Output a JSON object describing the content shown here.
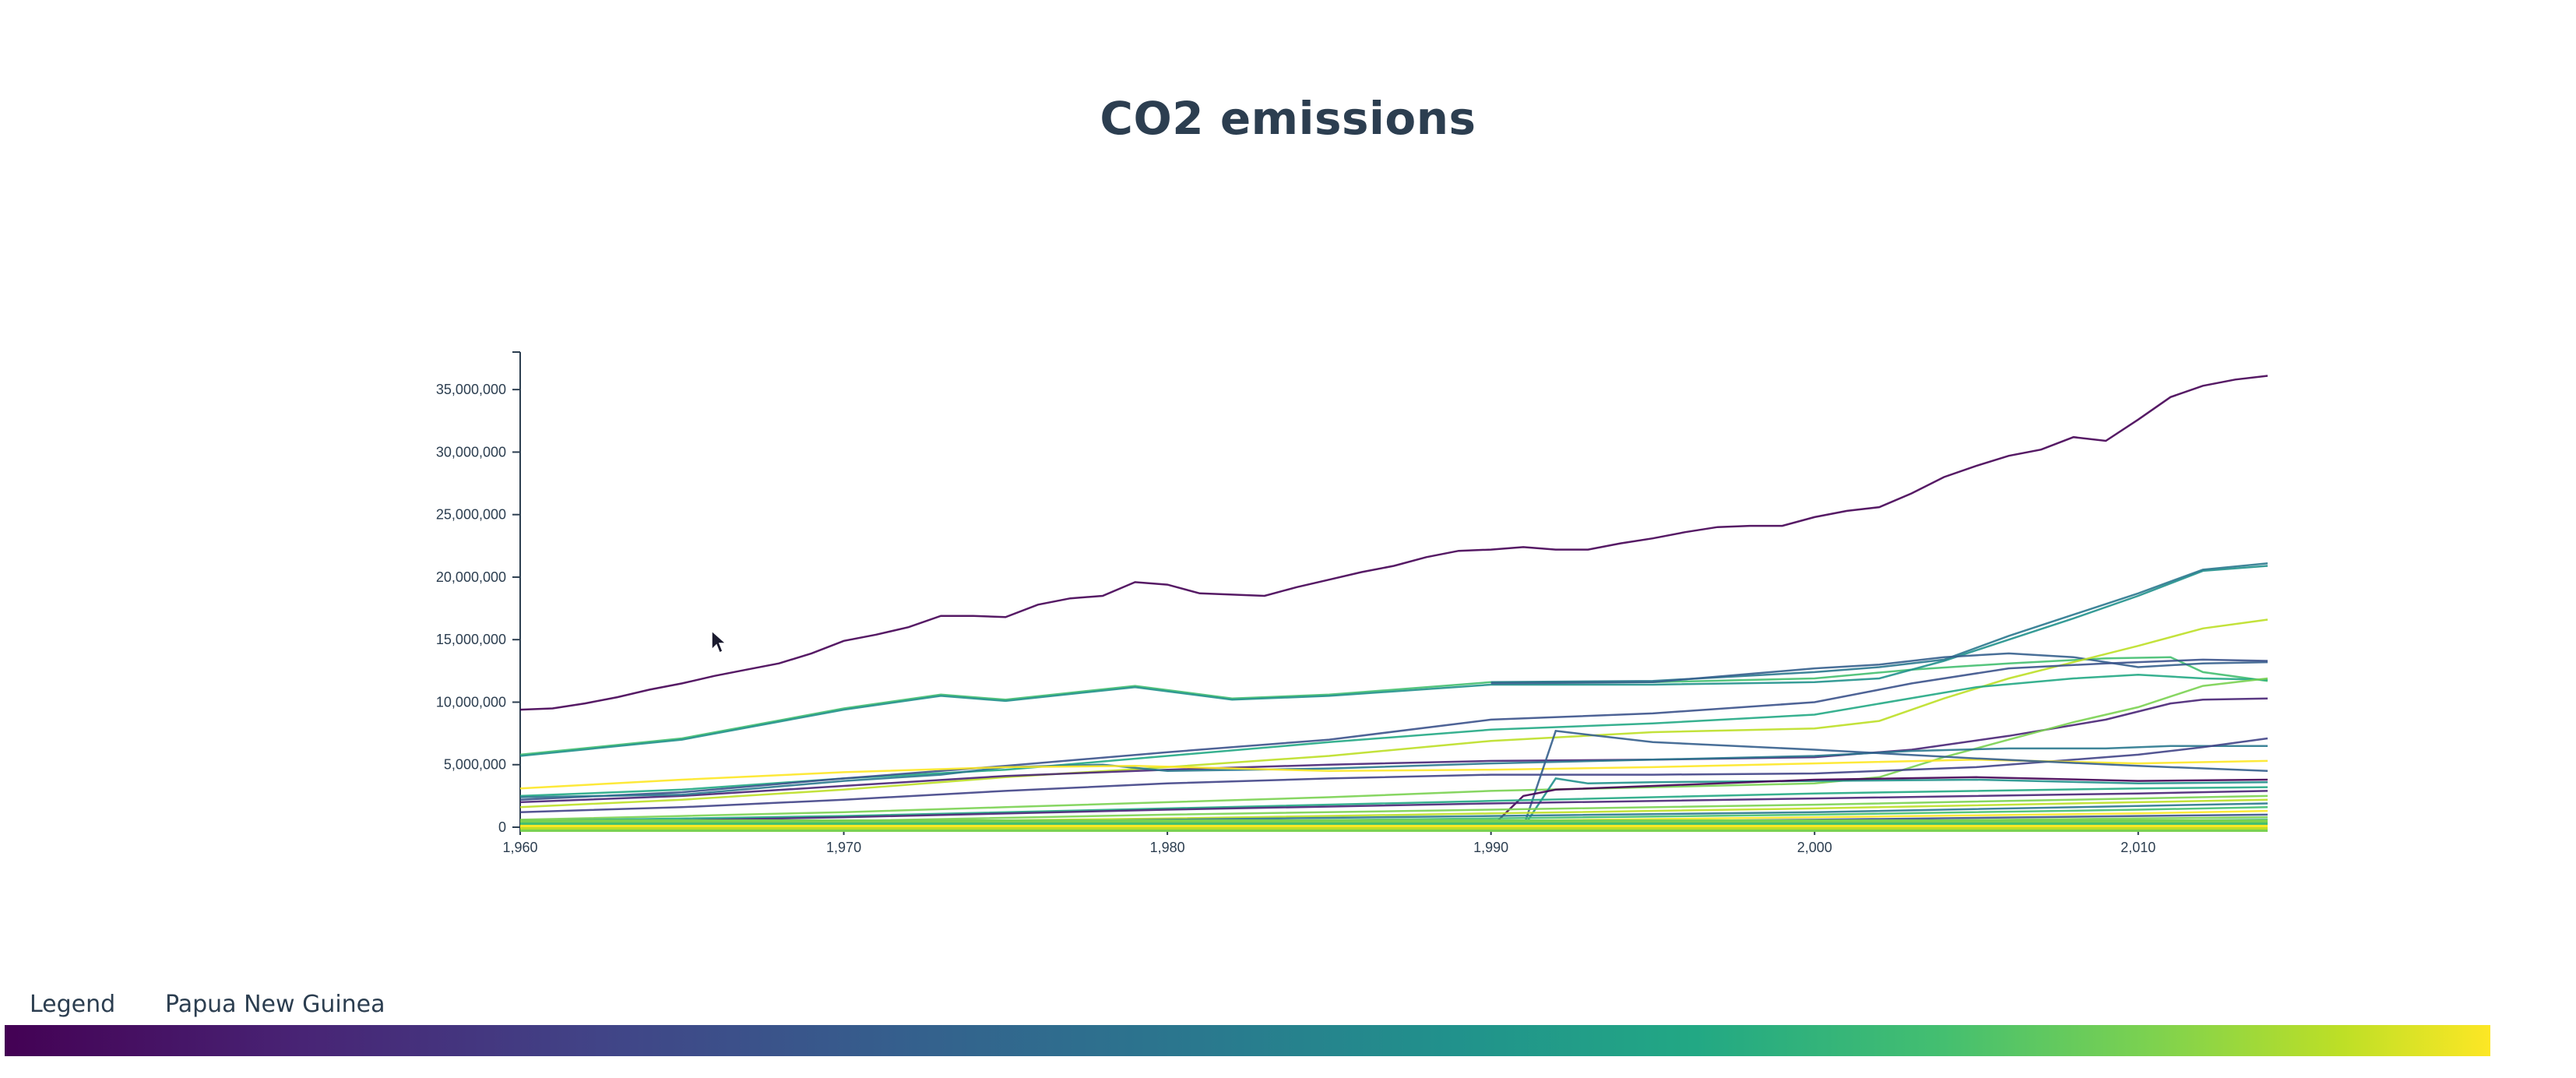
{
  "title": "CO2 emissions",
  "legend": {
    "label": "Legend",
    "hovered": "Papua New Guinea",
    "colormap": [
      "#440154",
      "#482475",
      "#414487",
      "#355f8d",
      "#2a788e",
      "#21918c",
      "#22a884",
      "#44bf70",
      "#7ad151",
      "#bddf26",
      "#fde725"
    ]
  },
  "chart_data": {
    "type": "line",
    "title": "CO2 emissions",
    "xlabel": "",
    "ylabel": "",
    "xlim": [
      1960,
      2014
    ],
    "ylim": [
      0,
      38000000
    ],
    "x_ticks": [
      "1,960",
      "1,970",
      "1,980",
      "1,990",
      "2,000",
      "2,010"
    ],
    "y_ticks": [
      "0",
      "5,000,000",
      "10,000,000",
      "15,000,000",
      "20,000,000",
      "25,000,000",
      "30,000,000",
      "35,000,000"
    ],
    "x_tick_values": [
      1960,
      1970,
      1980,
      1990,
      2000,
      2010
    ],
    "y_tick_values": [
      0,
      5000000,
      10000000,
      15000000,
      20000000,
      25000000,
      30000000,
      35000000
    ],
    "grid": false,
    "legend": "bottom color gradient",
    "series": [
      {
        "color": "#440154",
        "x": [
          1960,
          1961,
          1962,
          1963,
          1964,
          1965,
          1966,
          1967,
          1968,
          1969,
          1970,
          1971,
          1972,
          1973,
          1974,
          1975,
          1976,
          1977,
          1978,
          1979,
          1980,
          1981,
          1982,
          1983,
          1984,
          1985,
          1986,
          1987,
          1988,
          1989,
          1990,
          1991,
          1992,
          1993,
          1994,
          1995,
          1996,
          1997,
          1998,
          1999,
          2000,
          2001,
          2002,
          2003,
          2004,
          2005,
          2006,
          2007,
          2008,
          2009,
          2010,
          2011,
          2012,
          2013,
          2014
        ],
        "values": [
          9400000,
          9500000,
          9900000,
          10400000,
          11000000,
          11500000,
          12100000,
          12600000,
          13100000,
          13900000,
          14900000,
          15400000,
          16000000,
          16900000,
          16900000,
          16800000,
          17800000,
          18300000,
          18500000,
          19600000,
          19400000,
          18700000,
          18600000,
          18500000,
          19200000,
          19800000,
          20400000,
          20900000,
          21600000,
          22100000,
          22200000,
          22400000,
          22200000,
          22200000,
          22700000,
          23100000,
          23600000,
          24000000,
          24100000,
          24100000,
          24800000,
          25300000,
          25600000,
          26700000,
          28000000,
          28900000,
          29700000,
          30200000,
          31200000,
          30900000,
          32600000,
          34400000,
          35300000,
          35800000,
          36100000
        ]
      },
      {
        "color": "#44bf70",
        "x": [
          1960,
          1965,
          1970,
          1973,
          1975,
          1979,
          1982,
          1985,
          1990,
          1995,
          2000,
          2003,
          2006,
          2009,
          2011,
          2012,
          2014
        ],
        "values": [
          5800000,
          7100000,
          9500000,
          10600000,
          10200000,
          11300000,
          10300000,
          10600000,
          11600000,
          11600000,
          11900000,
          12600000,
          13100000,
          13500000,
          13600000,
          12400000,
          11700000
        ]
      },
      {
        "color": "#21918c",
        "x": [
          1960,
          1965,
          1970,
          1973,
          1975,
          1979,
          1982,
          1985,
          1990,
          1995,
          2000,
          2002,
          2004,
          2006,
          2008,
          2010,
          2012,
          2014
        ],
        "values": [
          5700000,
          7000000,
          9400000,
          10500000,
          10100000,
          11200000,
          10200000,
          10500000,
          11400000,
          11400000,
          11600000,
          11900000,
          13300000,
          15000000,
          16700000,
          18500000,
          20500000,
          20900000
        ]
      },
      {
        "color": "#2a788e",
        "x": [
          1990,
          1995,
          2000,
          2002,
          2004,
          2006,
          2008,
          2010,
          2012,
          2014
        ],
        "values": [
          11600000,
          11700000,
          12400000,
          12800000,
          13400000,
          15300000,
          17000000,
          18700000,
          20600000,
          21100000
        ]
      },
      {
        "color": "#355f8d",
        "x": [
          1990,
          1995,
          2000,
          2002,
          2004,
          2006,
          2008,
          2010,
          2012,
          2014
        ],
        "values": [
          11500000,
          11600000,
          12700000,
          13000000,
          13600000,
          13900000,
          13600000,
          12800000,
          13100000,
          13200000
        ]
      },
      {
        "color": "#bddf26",
        "x": [
          1960,
          1965,
          1970,
          1975,
          1980,
          1985,
          1990,
          1995,
          2000,
          2002,
          2004,
          2006,
          2008,
          2010,
          2012,
          2014
        ],
        "values": [
          1600000,
          2200000,
          3000000,
          4000000,
          4800000,
          5700000,
          6900000,
          7600000,
          7900000,
          8500000,
          10300000,
          11900000,
          13200000,
          14500000,
          15900000,
          16600000
        ]
      },
      {
        "color": "#22a884",
        "x": [
          1960,
          1965,
          1970,
          1975,
          1980,
          1985,
          1990,
          1995,
          2000,
          2005,
          2008,
          2010,
          2012,
          2014
        ],
        "values": [
          2500000,
          3000000,
          3900000,
          4600000,
          5700000,
          6800000,
          7800000,
          8300000,
          9000000,
          11200000,
          11900000,
          12200000,
          11900000,
          11800000
        ]
      },
      {
        "color": "#3b528b",
        "x": [
          1960,
          1965,
          1970,
          1975,
          1980,
          1985,
          1990,
          1995,
          2000,
          2003,
          2006,
          2009,
          2011,
          2012,
          2014
        ],
        "values": [
          2200000,
          2800000,
          3900000,
          4900000,
          6000000,
          7000000,
          8600000,
          9100000,
          10000000,
          11500000,
          12700000,
          13100000,
          13300000,
          13400000,
          13300000
        ]
      },
      {
        "color": "#482475",
        "x": [
          1960,
          1965,
          1970,
          1975,
          1980,
          1985,
          1990,
          1995,
          2000,
          2003,
          2006,
          2009,
          2011,
          2012,
          2014
        ],
        "values": [
          2000000,
          2500000,
          3300000,
          4100000,
          4600000,
          5000000,
          5300000,
          5400000,
          5600000,
          6200000,
          7300000,
          8600000,
          9900000,
          10200000,
          10300000
        ]
      },
      {
        "color": "#7ad151",
        "x": [
          1960,
          1965,
          1970,
          1975,
          1980,
          1985,
          1990,
          1995,
          2000,
          2002,
          2004,
          2006,
          2008,
          2010,
          2012,
          2014
        ],
        "values": [
          600000,
          900000,
          1200000,
          1600000,
          2000000,
          2400000,
          2900000,
          3200000,
          3500000,
          4000000,
          5600000,
          7000000,
          8400000,
          9600000,
          11300000,
          11900000
        ]
      },
      {
        "color": "#2a788e",
        "x": [
          1960,
          1965,
          1970,
          1973,
          1975,
          1978,
          1980,
          1985,
          1990,
          1995,
          2000,
          2003,
          2006,
          2009,
          2011,
          2014
        ],
        "values": [
          2400000,
          2600000,
          3700000,
          4200000,
          4800000,
          5000000,
          4500000,
          4700000,
          5100000,
          5400000,
          5700000,
          6100000,
          6300000,
          6300000,
          6500000,
          6500000
        ]
      },
      {
        "color": "#414487",
        "x": [
          1960,
          1965,
          1970,
          1975,
          1980,
          1985,
          1990,
          1995,
          2000,
          2005,
          2010,
          2012,
          2014
        ],
        "values": [
          1200000,
          1600000,
          2200000,
          2900000,
          3500000,
          3900000,
          4200000,
          4200000,
          4300000,
          4800000,
          5800000,
          6400000,
          7100000
        ]
      },
      {
        "color": "#fde725",
        "x": [
          1960,
          1965,
          1970,
          1975,
          1979,
          1985,
          1990,
          1995,
          2000,
          2005,
          2010,
          2014
        ],
        "values": [
          3100000,
          3800000,
          4400000,
          4800000,
          4900000,
          4500000,
          4600000,
          4800000,
          5100000,
          5400000,
          5100000,
          5300000
        ]
      },
      {
        "color": "#355f8d",
        "x": [
          1990,
          1991,
          1992,
          1993,
          1995,
          2000,
          2005,
          2010,
          2014
        ],
        "values": [
          0,
          0,
          7700000,
          7400000,
          6800000,
          6200000,
          5500000,
          4900000,
          4500000
        ]
      },
      {
        "color": "#21918c",
        "x": [
          1991,
          1992,
          1993,
          1995,
          2000,
          2005,
          2010,
          2014
        ],
        "values": [
          0,
          3900000,
          3500000,
          3600000,
          3700000,
          3800000,
          3500000,
          3600000
        ]
      },
      {
        "color": "#440154",
        "x": [
          1990,
          1991,
          1992,
          1995,
          2000,
          2005,
          2010,
          2014
        ],
        "values": [
          0,
          2500000,
          3000000,
          3300000,
          3800000,
          4000000,
          3700000,
          3800000
        ]
      },
      {
        "color": "#22a884",
        "x": [
          1960,
          1970,
          1980,
          1990,
          2000,
          2010,
          2014
        ],
        "values": [
          500000,
          900000,
          1500000,
          2100000,
          2700000,
          3100000,
          3200000
        ]
      },
      {
        "color": "#482475",
        "x": [
          1960,
          1970,
          1980,
          1990,
          2000,
          2010,
          2014
        ],
        "values": [
          300000,
          800000,
          1400000,
          1900000,
          2300000,
          2700000,
          2900000
        ]
      },
      {
        "color": "#7ad151",
        "x": [
          1960,
          1970,
          1980,
          1990,
          2000,
          2010,
          2014
        ],
        "values": [
          200000,
          500000,
          1000000,
          1400000,
          1800000,
          2300000,
          2500000
        ]
      },
      {
        "color": "#bddf26",
        "x": [
          1960,
          1970,
          1980,
          1990,
          2000,
          2010,
          2014
        ],
        "values": [
          150000,
          400000,
          700000,
          1100000,
          1500000,
          2000000,
          2200000
        ]
      },
      {
        "color": "#2a788e",
        "x": [
          1960,
          1970,
          1980,
          1990,
          2000,
          2010,
          2014
        ],
        "values": [
          100000,
          300000,
          600000,
          900000,
          1200000,
          1700000,
          1900000
        ]
      },
      {
        "color": "#44bf70",
        "x": [
          1960,
          1970,
          1980,
          1990,
          2000,
          2010,
          2014
        ],
        "values": [
          80000,
          200000,
          450000,
          700000,
          1000000,
          1400000,
          1600000
        ]
      },
      {
        "color": "#fde725",
        "x": [
          1960,
          1970,
          1980,
          1990,
          2000,
          2010,
          2014
        ],
        "values": [
          60000,
          150000,
          350000,
          500000,
          800000,
          1100000,
          1300000
        ]
      },
      {
        "color": "#3b528b",
        "x": [
          1960,
          1970,
          1980,
          1990,
          2000,
          2010,
          2014
        ],
        "values": [
          40000,
          100000,
          250000,
          400000,
          600000,
          900000,
          1000000
        ]
      },
      {
        "color": "#7ad151",
        "x": [
          1960,
          1970,
          1980,
          1990,
          2000,
          2010,
          2014
        ],
        "values": [
          30000,
          80000,
          180000,
          300000,
          450000,
          700000,
          800000
        ]
      },
      {
        "color": "#22a884",
        "x": [
          1960,
          1970,
          1980,
          1990,
          2000,
          2010,
          2014
        ],
        "values": [
          20000,
          50000,
          120000,
          200000,
          350000,
          500000,
          600000
        ]
      },
      {
        "color": "#bddf26",
        "x": [
          1960,
          1970,
          1980,
          1990,
          2000,
          2010,
          2014
        ],
        "values": [
          10000,
          30000,
          80000,
          150000,
          250000,
          380000,
          450000
        ]
      },
      {
        "color": "#fde725",
        "x": [
          1960,
          1970,
          1980,
          1990,
          2000,
          2010,
          2014
        ],
        "values": [
          5000,
          15000,
          50000,
          100000,
          160000,
          250000,
          300000
        ]
      },
      {
        "color": "#44bf70",
        "x": [
          1960,
          1970,
          1980,
          1990,
          2000,
          2010,
          2014
        ],
        "values": [
          2000,
          8000,
          25000,
          60000,
          100000,
          150000,
          180000
        ]
      },
      {
        "color": "#bddf26",
        "x": [
          1960,
          1970,
          1980,
          1990,
          2000,
          2010,
          2014
        ],
        "values": [
          1000,
          4000,
          12000,
          30000,
          50000,
          80000,
          100000
        ]
      },
      {
        "color": "#7ad151",
        "x": [
          1960,
          1970,
          1980,
          1990,
          2000,
          2010,
          2014
        ],
        "values": [
          500,
          2000,
          6000,
          15000,
          25000,
          40000,
          50000
        ]
      }
    ]
  }
}
